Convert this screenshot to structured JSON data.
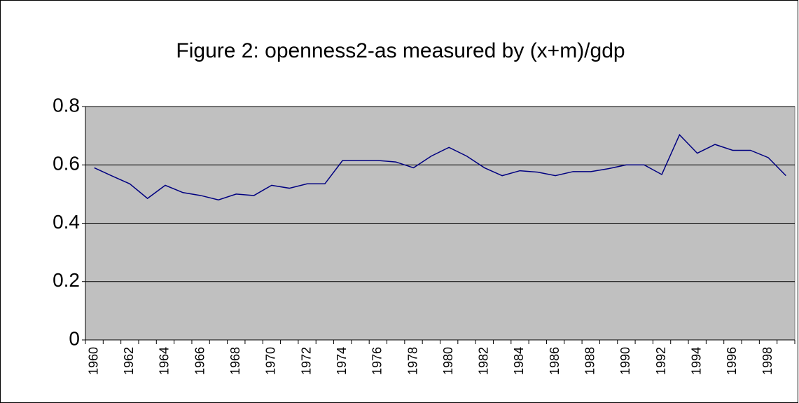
{
  "chart_data": {
    "type": "line",
    "title": "Figure 2: openness2-as measured by (x+m)/gdp",
    "categories": [
      "1960",
      null,
      "1962",
      null,
      "1964",
      null,
      "1966",
      null,
      "1968",
      null,
      "1970",
      null,
      "1972",
      null,
      "1974",
      null,
      "1976",
      null,
      "1978",
      null,
      "1980",
      null,
      "1982",
      null,
      "1984",
      null,
      "1986",
      null,
      "1988",
      null,
      "1990",
      null,
      "1992",
      null,
      "1994",
      null,
      "1996",
      null,
      "1998",
      null
    ],
    "series": [
      {
        "name": "openness2",
        "color": "#000080",
        "values": [
          0.59,
          0.562,
          0.535,
          0.485,
          0.53,
          0.505,
          0.495,
          0.48,
          0.5,
          0.495,
          0.53,
          0.52,
          0.535,
          0.535,
          0.615,
          0.615,
          0.615,
          0.61,
          0.59,
          0.63,
          0.66,
          0.63,
          0.59,
          0.563,
          0.58,
          0.575,
          0.563,
          0.577,
          0.577,
          0.587,
          0.6,
          0.6,
          0.567,
          0.703,
          0.64,
          0.67,
          0.65,
          0.65,
          0.625,
          0.563
        ]
      }
    ],
    "ylim": [
      0,
      0.8
    ],
    "yticks": [
      0,
      0.2,
      0.4,
      0.6,
      0.8
    ],
    "grid": true,
    "plot_background": "#c0c0c0"
  }
}
